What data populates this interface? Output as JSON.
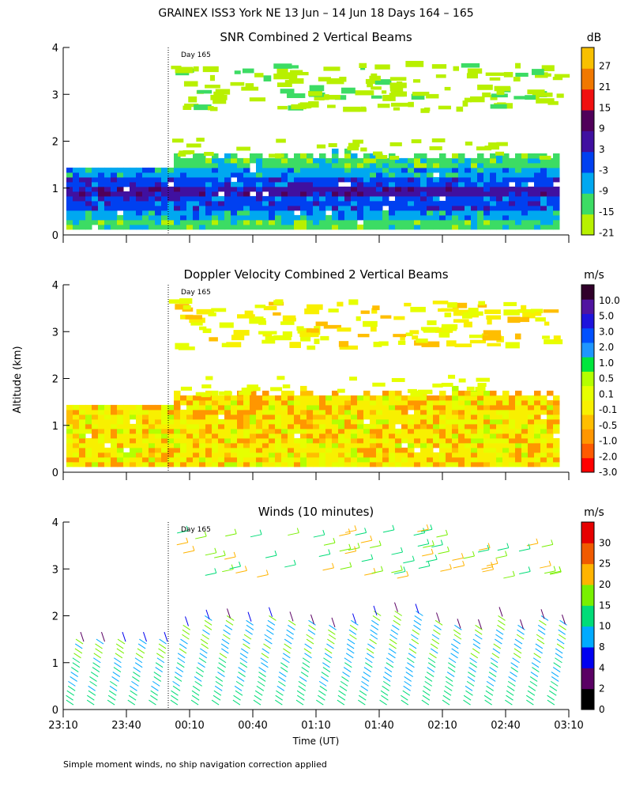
{
  "header": {
    "title": "GRAINEX ISS3 York NE  13 Jun – 14 Jun 18 Days 164 – 165"
  },
  "ylabel": "Altitude (km)",
  "footnote": "Simple moment winds, no ship navigation correction applied",
  "day_marker": "Day 165",
  "colors": {
    "snr": [
      "#b8f000",
      "#3cdc64",
      "#00a8f0",
      "#0040f0",
      "#4010a0",
      "#50005a",
      "#f01010",
      "#f07800",
      "#f8c000"
    ],
    "vel": [
      "#ff0000",
      "#ff5a00",
      "#ff9600",
      "#ffbe00",
      "#f8f000",
      "#e6ff00",
      "#b4ff00",
      "#00e63c",
      "#1e96ff",
      "#0050ff",
      "#1e14dc",
      "#5014a0",
      "#30002a"
    ],
    "wind": [
      "#000000",
      "#5a0064",
      "#0000f0",
      "#00aaff",
      "#00dc78",
      "#78f000",
      "#ffb400",
      "#f05a00",
      "#e60000"
    ]
  },
  "chart_data": [
    {
      "type": "heatmap",
      "title": "SNR Combined 2 Vertical Beams",
      "unit": "dB",
      "xlabel": "",
      "ylabel": "Altitude (km)",
      "ylim": [
        0,
        4
      ],
      "yticks": [
        "0",
        "1",
        "2",
        "3",
        "4"
      ],
      "colorbar_labels": [
        "-21",
        "-15",
        "-9",
        "-3",
        "3",
        "9",
        "15",
        "21",
        "27"
      ]
    },
    {
      "type": "heatmap",
      "title": "Doppler Velocity Combined 2 Vertical Beams",
      "unit": "m/s",
      "xlabel": "",
      "ylabel": "Altitude (km)",
      "ylim": [
        0,
        4
      ],
      "yticks": [
        "0",
        "1",
        "2",
        "3",
        "4"
      ],
      "colorbar_labels": [
        "-3.0",
        "-2.0",
        "-1.0",
        "-0.5",
        "-0.1",
        "0.1",
        "0.5",
        "1.0",
        "2.0",
        "3.0",
        "5.0",
        "10.0"
      ]
    },
    {
      "type": "scatter",
      "title": "Winds (10 minutes)",
      "unit": "m/s",
      "xlabel": "Time (UT)",
      "ylabel": "Altitude (km)",
      "ylim": [
        0,
        4
      ],
      "yticks": [
        "0",
        "1",
        "2",
        "3",
        "4"
      ],
      "xticks": [
        "23:10",
        "23:40",
        "00:10",
        "00:40",
        "01:10",
        "01:40",
        "02:10",
        "02:40",
        "03:10"
      ],
      "colorbar_labels": [
        "0",
        "2",
        "4",
        "8",
        "10",
        "15",
        "20",
        "25",
        "30"
      ]
    }
  ]
}
